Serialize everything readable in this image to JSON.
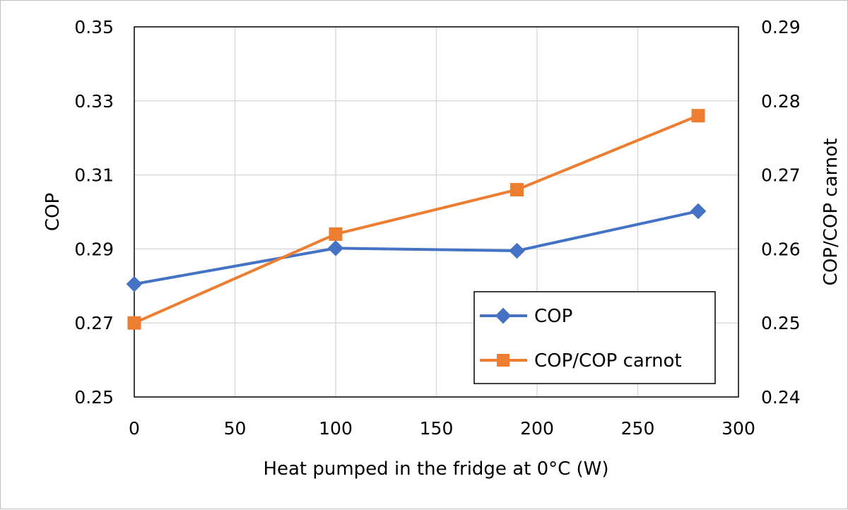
{
  "chart_data": {
    "type": "line",
    "title": "",
    "xlabel": "Heat pumped in the fridge at 0°C (W)",
    "ylabel": "COP",
    "y2label": "COP/COP carnot",
    "xlim": [
      0,
      300
    ],
    "ylim": [
      0.25,
      0.35
    ],
    "y2lim": [
      0.24,
      0.29
    ],
    "xticks": [
      0,
      50,
      100,
      150,
      200,
      250,
      300
    ],
    "xtick_labels": [
      "0",
      "50",
      "100",
      "150",
      "200",
      "250",
      "300"
    ],
    "yticks": [
      0.25,
      0.27,
      0.29,
      0.31,
      0.33,
      0.35
    ],
    "ytick_labels": [
      "0.25",
      "0.27",
      "0.29",
      "0.31",
      "0.33",
      "0.35"
    ],
    "y2ticks": [
      0.24,
      0.25,
      0.26,
      0.27,
      0.28,
      0.29
    ],
    "y2tick_labels": [
      "0.24",
      "0.25",
      "0.26",
      "0.27",
      "0.28",
      "0.29"
    ],
    "grid": true,
    "legend_position": "bottom-right",
    "series": [
      {
        "name": "COP",
        "axis": "left",
        "color": "#4472C4",
        "marker": "diamond",
        "x": [
          0,
          100,
          190,
          280
        ],
        "values": [
          0.2805,
          0.2902,
          0.2895,
          0.3002
        ]
      },
      {
        "name": "COP/COP carnot",
        "axis": "right",
        "color": "#ED7D31",
        "marker": "square",
        "x": [
          0,
          100,
          190,
          280
        ],
        "values": [
          0.25,
          0.262,
          0.268,
          0.278
        ]
      }
    ]
  }
}
